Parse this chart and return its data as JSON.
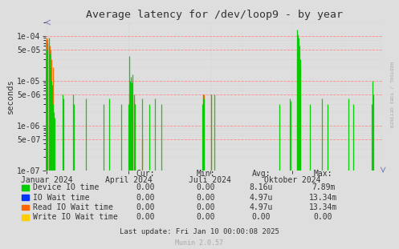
{
  "title": "Average latency for /dev/loop9 - by year",
  "ylabel": "seconds",
  "background_color": "#DEDEDE",
  "plot_bg_color": "#DEDEDE",
  "grid_color_major": "#FF8888",
  "grid_color_minor": "#DDDDDD",
  "x_min": 1703980800,
  "x_max": 1736467200,
  "y_min": 1e-07,
  "y_max": 0.0002,
  "x_ticks_labels": [
    "Januar 2024",
    "April 2024",
    "Juli 2024",
    "Oktober 2024"
  ],
  "x_ticks_positions": [
    1704067200,
    1711929600,
    1719792000,
    1727740800
  ],
  "y_ticks": [
    1e-07,
    5e-07,
    1e-06,
    5e-06,
    1e-05,
    5e-05,
    0.0001
  ],
  "y_tick_labels": [
    "1e-07",
    "5e-07",
    "1e-06",
    "5e-06",
    "1e-05",
    "5e-05",
    "1e-04"
  ],
  "legend_items": [
    {
      "label": "Device IO time",
      "color": "#00CC00"
    },
    {
      "label": "IO Wait time",
      "color": "#0033FF"
    },
    {
      "label": "Read IO Wait time",
      "color": "#FF6600"
    },
    {
      "label": "Write IO Wait time",
      "color": "#FFCC00"
    }
  ],
  "legend_stats_header": [
    "Cur:",
    "Min:",
    "Avg:",
    "Max:"
  ],
  "legend_stats_rows": [
    [
      "0.00",
      "0.00",
      "8.16u",
      "7.89m"
    ],
    [
      "0.00",
      "0.00",
      "4.97u",
      "13.34m"
    ],
    [
      "0.00",
      "0.00",
      "4.97u",
      "13.34m"
    ],
    [
      "0.00",
      "0.00",
      "0.00",
      "0.00"
    ]
  ],
  "last_update": "Last update: Fri Jan 10 00:00:08 2025",
  "munin_version": "Munin 2.0.57",
  "rrdtool_label": "RRDTOOL / TOBI OETIKER",
  "green_spikes": [
    [
      1703980800,
      3e-05
    ],
    [
      1704067200,
      5e-05
    ],
    [
      1704153600,
      7e-05
    ],
    [
      1704240000,
      9e-05
    ],
    [
      1704326400,
      4e-05
    ],
    [
      1704412800,
      2e-05
    ],
    [
      1704499200,
      1e-05
    ],
    [
      1704585600,
      8e-06
    ],
    [
      1704672000,
      3e-06
    ],
    [
      1704758400,
      2e-06
    ],
    [
      1704844800,
      1.5e-06
    ],
    [
      1705622400,
      5e-06
    ],
    [
      1705708800,
      4e-06
    ],
    [
      1706572800,
      5e-06
    ],
    [
      1706659200,
      3e-06
    ],
    [
      1707868800,
      4e-06
    ],
    [
      1709510400,
      3e-06
    ],
    [
      1710115200,
      4e-06
    ],
    [
      1711238400,
      3e-06
    ],
    [
      1711929600,
      3e-06
    ],
    [
      1712016000,
      3.5e-05
    ],
    [
      1712102400,
      1e-05
    ],
    [
      1712188800,
      1.2e-05
    ],
    [
      1712275200,
      9e-06
    ],
    [
      1712361600,
      1.4e-05
    ],
    [
      1712448000,
      5e-06
    ],
    [
      1712534400,
      3e-06
    ],
    [
      1713225600,
      4e-06
    ],
    [
      1713916800,
      3e-06
    ],
    [
      1714521600,
      4e-06
    ],
    [
      1715126400,
      3e-06
    ],
    [
      1719014400,
      3e-06
    ],
    [
      1719100800,
      5e-06
    ],
    [
      1719187200,
      4e-06
    ],
    [
      1719878400,
      5e-06
    ],
    [
      1720224000,
      5e-06
    ],
    [
      1726444800,
      3e-06
    ],
    [
      1727481600,
      4e-06
    ],
    [
      1727568000,
      3.5e-06
    ],
    [
      1728172800,
      0.00014
    ],
    [
      1728259200,
      0.00011
    ],
    [
      1728345600,
      9e-05
    ],
    [
      1728432000,
      6e-05
    ],
    [
      1728518400,
      3e-05
    ],
    [
      1729382400,
      3e-06
    ],
    [
      1730592000,
      4e-06
    ],
    [
      1731110400,
      3e-06
    ],
    [
      1733097600,
      4e-06
    ],
    [
      1733616000,
      3e-06
    ],
    [
      1735344000,
      3e-06
    ],
    [
      1735430400,
      1e-05
    ],
    [
      1735516800,
      5e-06
    ]
  ],
  "orange_spikes": [
    [
      1703980800,
      8e-05
    ],
    [
      1704067200,
      9e-05
    ],
    [
      1704153600,
      8.5e-05
    ],
    [
      1704240000,
      5e-05
    ],
    [
      1704326400,
      6e-05
    ],
    [
      1704412800,
      5e-05
    ],
    [
      1704499200,
      3e-05
    ],
    [
      1704672000,
      2e-05
    ],
    [
      1705276800,
      1e-07
    ],
    [
      1710115200,
      1e-07
    ],
    [
      1711929600,
      1e-07
    ],
    [
      1712016000,
      5e-06
    ],
    [
      1712102400,
      8e-06
    ],
    [
      1712188800,
      6e-06
    ],
    [
      1712275200,
      4e-06
    ],
    [
      1712361600,
      5e-06
    ],
    [
      1712448000,
      4e-06
    ],
    [
      1712534400,
      3e-06
    ],
    [
      1713225600,
      5e-07
    ],
    [
      1719100800,
      5e-06
    ],
    [
      1719187200,
      5e-06
    ],
    [
      1719878400,
      5e-06
    ],
    [
      1726444800,
      1e-07
    ],
    [
      1727568000,
      1e-07
    ],
    [
      1728172800,
      4.5e-05
    ],
    [
      1728259200,
      5e-05
    ],
    [
      1728345600,
      4e-05
    ],
    [
      1728432000,
      3e-05
    ],
    [
      1728518400,
      2e-05
    ],
    [
      1729382400,
      1e-07
    ],
    [
      1730592000,
      1e-07
    ],
    [
      1731110400,
      1e-07
    ],
    [
      1733097600,
      1e-07
    ],
    [
      1735344000,
      1e-07
    ],
    [
      1735430400,
      1e-07
    ],
    [
      1735516800,
      1e-07
    ]
  ]
}
